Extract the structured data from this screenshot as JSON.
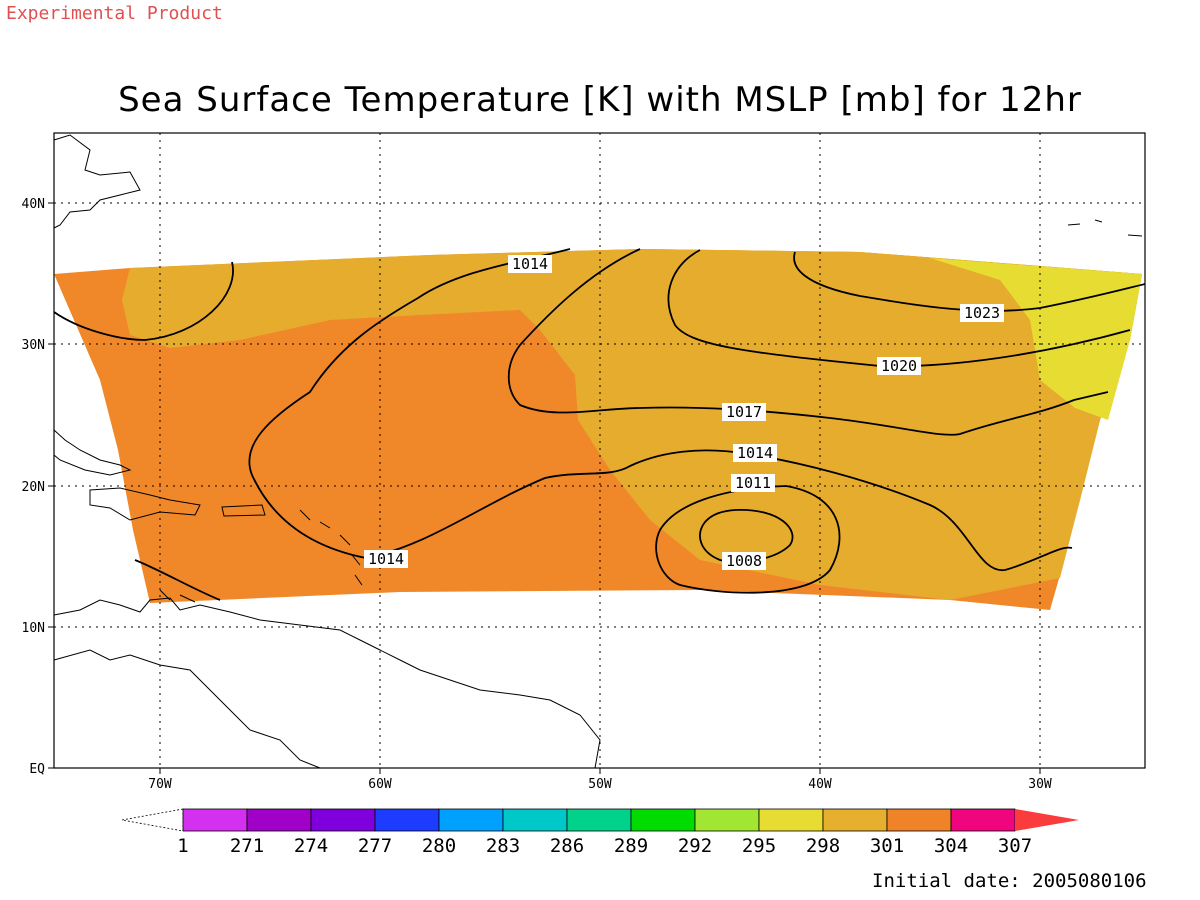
{
  "header": {
    "product_tag": "Experimental Product",
    "title": "Sea Surface Temperature [K] with MSLP [mb] for 12hr"
  },
  "map": {
    "lat_labels": [
      "40N",
      "30N",
      "20N",
      "10N",
      "EQ"
    ],
    "lon_labels": [
      "70W",
      "60W",
      "50W",
      "40W",
      "30W"
    ],
    "isobar_labels": [
      "1014",
      "1023",
      "1020",
      "1017",
      "1014",
      "1011",
      "1008",
      "1014"
    ],
    "sst_colors": {
      "warm_orange": "#f0882a",
      "gold": "#e6ac2e",
      "yellow": "#e6dc32"
    }
  },
  "colorbar": {
    "tick_labels": [
      "1",
      "271",
      "274",
      "277",
      "280",
      "283",
      "286",
      "289",
      "292",
      "295",
      "298",
      "301",
      "304",
      "307"
    ],
    "colors": [
      "#d430f0",
      "#a000c8",
      "#7f00dc",
      "#1e3cff",
      "#00a0ff",
      "#00c8c8",
      "#00d28c",
      "#00dc00",
      "#a0e632",
      "#e6dc32",
      "#e6af2d",
      "#f08228",
      "#f0057f",
      "#fa3c3c"
    ]
  },
  "footer": {
    "initial_date": "Initial date: 2005080106"
  }
}
